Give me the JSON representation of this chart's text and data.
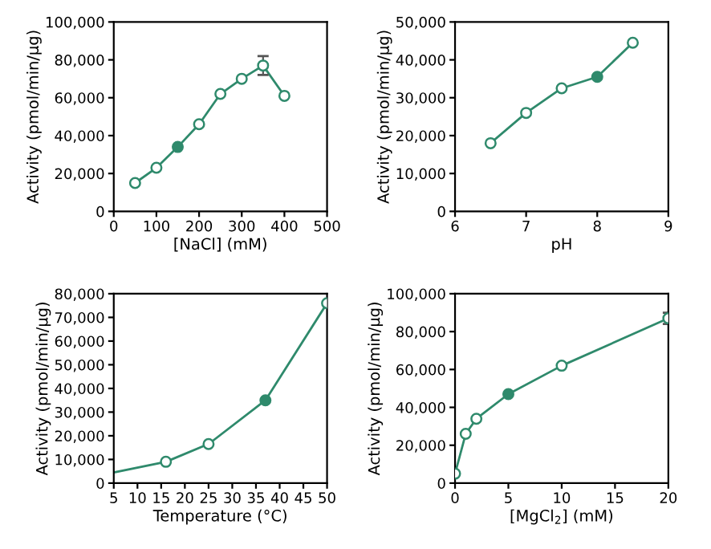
{
  "chart_data": [
    {
      "type": "line",
      "xlabel": "[NaCl] (mM)",
      "ylabel": "Activity (pmol/min/μg)",
      "x": [
        50,
        100,
        150,
        200,
        250,
        300,
        350,
        400
      ],
      "xlim": [
        0,
        500
      ],
      "xticks": [
        0,
        100,
        200,
        300,
        400,
        500
      ],
      "ylim": [
        0,
        100000
      ],
      "yticks": [
        {
          "value": 0,
          "label": "0"
        },
        {
          "value": 20000,
          "label": "20,000"
        },
        {
          "value": 40000,
          "label": "40,000"
        },
        {
          "value": 60000,
          "label": "60,000"
        },
        {
          "value": 80000,
          "label": "80,000"
        },
        {
          "value": 100000,
          "label": "100,000"
        }
      ],
      "marker": "circle",
      "grid": false,
      "legend": false,
      "series": [
        {
          "color": "#2f8a6c",
          "values": [
            15000,
            23000,
            34000,
            46000,
            62000,
            70000,
            77000,
            61000
          ],
          "errors": [
            null,
            null,
            null,
            null,
            null,
            null,
            5000,
            null
          ],
          "colors": [
            "#ffffff",
            "#ffffff",
            "#2f8a6c",
            "#ffffff",
            "#ffffff",
            "#ffffff",
            "#ffffff",
            "#ffffff"
          ]
        }
      ]
    },
    {
      "type": "line",
      "xlabel": "pH",
      "ylabel": "Activity (pmol/min/μg)",
      "x": [
        6.5,
        7,
        7.5,
        8,
        8.5
      ],
      "xlim": [
        6,
        9
      ],
      "xticks": [
        6,
        7,
        8,
        9
      ],
      "ylim": [
        0,
        50000
      ],
      "yticks": [
        {
          "value": 0,
          "label": "0"
        },
        {
          "value": 10000,
          "label": "10,000"
        },
        {
          "value": 20000,
          "label": "20,000"
        },
        {
          "value": 30000,
          "label": "30,000"
        },
        {
          "value": 40000,
          "label": "40,000"
        },
        {
          "value": 50000,
          "label": "50,000"
        }
      ],
      "marker": "circle",
      "grid": false,
      "legend": false,
      "series": [
        {
          "color": "#2f8a6c",
          "values": [
            18000,
            26000,
            32500,
            35500,
            44500
          ],
          "colors": [
            "#ffffff",
            "#ffffff",
            "#ffffff",
            "#2f8a6c",
            "#ffffff"
          ]
        }
      ]
    },
    {
      "type": "line",
      "xlabel": "Temperature (°C)",
      "ylabel": "Activity (pmol/min/μg)",
      "x": [
        5,
        16,
        25,
        37,
        50
      ],
      "xlim": [
        5,
        50
      ],
      "xticks": [
        5,
        10,
        15,
        20,
        25,
        30,
        35,
        40,
        45,
        50
      ],
      "ylim": [
        0,
        80000
      ],
      "yticks": [
        {
          "value": 0,
          "label": "0"
        },
        {
          "value": 10000,
          "label": "10,000"
        },
        {
          "value": 20000,
          "label": "20,000"
        },
        {
          "value": 30000,
          "label": "30,000"
        },
        {
          "value": 40000,
          "label": "40,000"
        },
        {
          "value": 50000,
          "label": "50,000"
        },
        {
          "value": 60000,
          "label": "60,000"
        },
        {
          "value": 70000,
          "label": "70,000"
        },
        {
          "value": 80000,
          "label": "80,000"
        }
      ],
      "marker": "circle",
      "grid": false,
      "legend": false,
      "series": [
        {
          "color": "#2f8a6c",
          "values": [
            4500,
            9000,
            16500,
            35000,
            76000
          ],
          "colors": [
            null,
            "#ffffff",
            "#ffffff",
            "#2f8a6c",
            "#ffffff"
          ]
        }
      ]
    },
    {
      "type": "line",
      "xlabel": "[MgCl$_{2}$] (mM)",
      "ylabel": "Activity (pmol/min/μg)",
      "x": [
        0,
        1,
        2,
        5,
        10,
        20
      ],
      "xlim": [
        0,
        20
      ],
      "xticks": [
        0,
        5,
        10,
        15,
        20
      ],
      "ylim": [
        0,
        100000
      ],
      "yticks": [
        {
          "value": 0,
          "label": "0"
        },
        {
          "value": 20000,
          "label": "20,000"
        },
        {
          "value": 40000,
          "label": "40,000"
        },
        {
          "value": 60000,
          "label": "60,000"
        },
        {
          "value": 80000,
          "label": "80,000"
        },
        {
          "value": 100000,
          "label": "100,000"
        }
      ],
      "marker": "circle",
      "grid": false,
      "legend": false,
      "series": [
        {
          "color": "#2f8a6c",
          "values": [
            5000,
            26000,
            34000,
            47000,
            62000,
            87000
          ],
          "errors": [
            null,
            null,
            null,
            null,
            null,
            3000
          ],
          "colors": [
            "#ffffff",
            "#ffffff",
            "#ffffff",
            "#2f8a6c",
            "#ffffff",
            "#ffffff"
          ]
        }
      ]
    }
  ]
}
